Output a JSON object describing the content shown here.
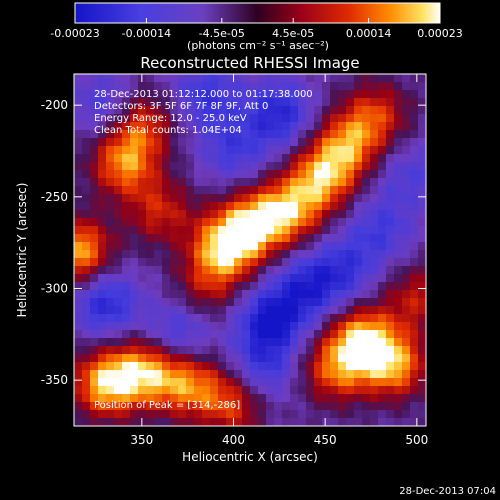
{
  "chart_data": {
    "type": "heatmap",
    "title": "Reconstructed RHESSI Image",
    "xlabel": "Heliocentric X (arcsec)",
    "ylabel": "Heliocentric Y (arcsec)",
    "xlim": [
      313,
      505
    ],
    "ylim": [
      -375,
      -183
    ],
    "xticks": [
      350,
      400,
      450,
      500
    ],
    "yticks": [
      -200,
      -250,
      -300,
      -350
    ],
    "colorbar": {
      "ticks": [
        "-0.00023",
        "-0.00014",
        "-4.5e-05",
        "4.5e-05",
        "0.00014",
        "0.00023"
      ],
      "tick_values": [
        -0.00023,
        -0.00014,
        -4.5e-05,
        4.5e-05,
        0.00014,
        0.00023
      ],
      "range": [
        -0.00023,
        0.00023
      ],
      "unit_label": "(photons cm⁻² s⁻¹ asec⁻²)"
    },
    "annotations": [
      "28-Dec-2013 01:12:12.000 to 01:17:38.000",
      "Detectors: 3F 5F 6F 7F 8F 9F, Att 0",
      "Energy Range: 12.0 - 25.0 keV",
      "Clean    Total counts: 1.04E+04"
    ],
    "peak_label": "Position of Peak = [314,-286]",
    "features": [
      {
        "x": 395,
        "y": -278,
        "peak": 0.00023
      },
      {
        "x": 410,
        "y": -265,
        "peak": 0.0002
      },
      {
        "x": 430,
        "y": -258,
        "peak": 0.00019
      },
      {
        "x": 448,
        "y": -240,
        "peak": 0.0002
      },
      {
        "x": 462,
        "y": -222,
        "peak": 0.00018
      },
      {
        "x": 478,
        "y": -205,
        "peak": 0.00014
      },
      {
        "x": 340,
        "y": -232,
        "peak": 0.00019
      },
      {
        "x": 350,
        "y": -210,
        "peak": 0.00015
      },
      {
        "x": 315,
        "y": -280,
        "peak": 0.00023
      },
      {
        "x": 360,
        "y": -258,
        "peak": 0.00013
      },
      {
        "x": 385,
        "y": -300,
        "peak": 0.0001
      },
      {
        "x": 330,
        "y": -352,
        "peak": 0.00023
      },
      {
        "x": 352,
        "y": -345,
        "peak": 0.0002
      },
      {
        "x": 375,
        "y": -352,
        "peak": 0.00018
      },
      {
        "x": 400,
        "y": -362,
        "peak": 0.00016
      },
      {
        "x": 470,
        "y": -328,
        "peak": 0.00023
      },
      {
        "x": 488,
        "y": -342,
        "peak": 0.0002
      },
      {
        "x": 455,
        "y": -345,
        "peak": 0.00016
      },
      {
        "x": 500,
        "y": -305,
        "peak": 0.00012
      },
      {
        "x": 385,
        "y": -195,
        "peak": -0.00012
      },
      {
        "x": 425,
        "y": -205,
        "peak": -0.00015
      },
      {
        "x": 400,
        "y": -225,
        "peak": -0.0001
      },
      {
        "x": 330,
        "y": -308,
        "peak": -0.00015
      },
      {
        "x": 370,
        "y": -325,
        "peak": -0.00012
      },
      {
        "x": 420,
        "y": -318,
        "peak": -0.00018
      },
      {
        "x": 440,
        "y": -300,
        "peak": -0.00014
      },
      {
        "x": 415,
        "y": -345,
        "peak": -0.00012
      },
      {
        "x": 480,
        "y": -268,
        "peak": -0.0001
      },
      {
        "x": 460,
        "y": -290,
        "peak": -0.00011
      },
      {
        "x": 330,
        "y": -200,
        "peak": -0.0001
      },
      {
        "x": 495,
        "y": -238,
        "peak": -8e-05
      }
    ]
  },
  "footer": {
    "timestamp": "28-Dec-2013 07:04"
  }
}
